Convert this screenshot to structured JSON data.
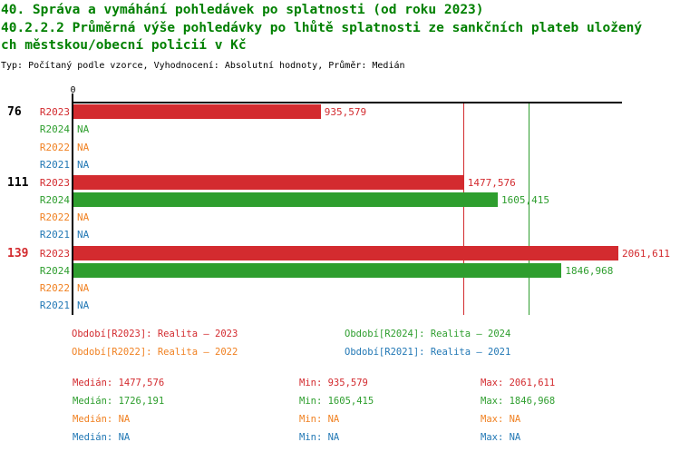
{
  "header": {
    "title_line1": "40. Správa a vymáhání pohledávek po splatnosti (od roku 2023)",
    "title_line2": "40.2.2.2 Průměrná výše pohledávky po lhůtě splatnosti ze sankčních plateb uložený",
    "title_line3": "ch městskou/obecní policií v Kč",
    "meta_line": "Typ: Počítaný podle vzorce, Vyhodnocení: Absolutní hodnoty, Průměr: Medián"
  },
  "colors": {
    "title_green": "#008000",
    "axis_black": "#000000",
    "r2023_red": "#d32b2f",
    "r2024_green": "#2e9e2e",
    "r2022_orange": "#f08122",
    "r2021_blue": "#2278b5"
  },
  "chart_data": {
    "type": "bar",
    "orientation": "horizontal",
    "zero_tick_label": "0",
    "na_label": "NA",
    "x_min": 0,
    "x_max_value": 2061.611,
    "grid": false,
    "series_order": [
      "R2023",
      "R2024",
      "R2022",
      "R2021"
    ],
    "series_colors": {
      "R2023": "#d32b2f",
      "R2024": "#2e9e2e",
      "R2022": "#f08122",
      "R2021": "#2278b5"
    },
    "groups": [
      {
        "label": "76",
        "label_color": "#000000",
        "rows": [
          {
            "series": "R2023",
            "value": 935.579,
            "value_label": "935,579"
          },
          {
            "series": "R2024",
            "value": null,
            "value_label": "NA"
          },
          {
            "series": "R2022",
            "value": null,
            "value_label": "NA"
          },
          {
            "series": "R2021",
            "value": null,
            "value_label": "NA"
          }
        ]
      },
      {
        "label": "111",
        "label_color": "#000000",
        "rows": [
          {
            "series": "R2023",
            "value": 1477.576,
            "value_label": "1477,576"
          },
          {
            "series": "R2024",
            "value": 1605.415,
            "value_label": "1605,415"
          },
          {
            "series": "R2022",
            "value": null,
            "value_label": "NA"
          },
          {
            "series": "R2021",
            "value": null,
            "value_label": "NA"
          }
        ]
      },
      {
        "label": "139",
        "label_color": "#d32b2f",
        "rows": [
          {
            "series": "R2023",
            "value": 2061.611,
            "value_label": "2061,611"
          },
          {
            "series": "R2024",
            "value": 1846.968,
            "value_label": "1846,968"
          },
          {
            "series": "R2022",
            "value": null,
            "value_label": "NA"
          },
          {
            "series": "R2021",
            "value": null,
            "value_label": "NA"
          }
        ]
      }
    ],
    "median_lines": [
      {
        "series": "R2023",
        "value": 1477.576
      },
      {
        "series": "R2024",
        "value": 1726.191
      }
    ]
  },
  "legend": {
    "items": [
      {
        "series": "R2023",
        "label": "Období[R2023]: Realita – 2023"
      },
      {
        "series": "R2024",
        "label": "Období[R2024]: Realita – 2024"
      },
      {
        "series": "R2022",
        "label": "Období[R2022]: Realita – 2022"
      },
      {
        "series": "R2021",
        "label": "Období[R2021]: Realita – 2021"
      }
    ]
  },
  "stats": {
    "rows": [
      {
        "series": "R2023",
        "median_text": "Medián: 1477,576",
        "min_text": "Min: 935,579",
        "max_text": "Max: 2061,611"
      },
      {
        "series": "R2024",
        "median_text": "Medián: 1726,191",
        "min_text": "Min: 1605,415",
        "max_text": "Max: 1846,968"
      },
      {
        "series": "R2022",
        "median_text": "Medián: NA",
        "min_text": "Min: NA",
        "max_text": "Max: NA"
      },
      {
        "series": "R2021",
        "median_text": "Medián: NA",
        "min_text": "Min: NA",
        "max_text": "Max: NA"
      }
    ]
  }
}
